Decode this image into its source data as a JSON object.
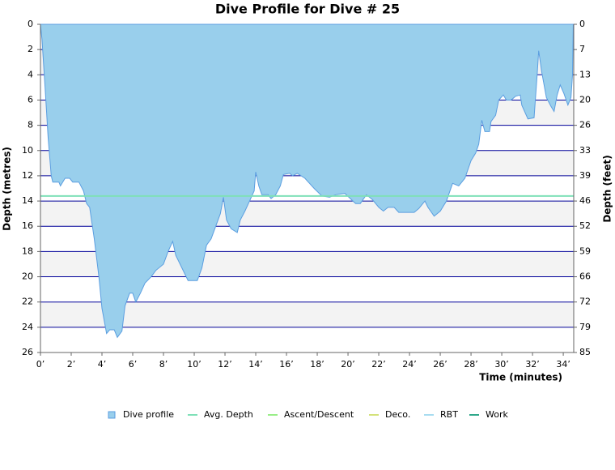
{
  "chart_data": {
    "type": "area",
    "title": "Dive Profile for Dive # 25",
    "x_label": "Time (minutes)",
    "y_label": "Depth (metres)",
    "y2_label": "Depth (feet)",
    "y_inverted": true,
    "xlim": [
      0,
      34.68
    ],
    "ylim": [
      0,
      26
    ],
    "y2lim": [
      0,
      85.302
    ],
    "xticks": [
      {
        "value": 0,
        "label": "0’"
      },
      {
        "value": 2,
        "label": "2’"
      },
      {
        "value": 4,
        "label": "4’"
      },
      {
        "value": 6,
        "label": "6’"
      },
      {
        "value": 8,
        "label": "8’"
      },
      {
        "value": 10,
        "label": "10’"
      },
      {
        "value": 12,
        "label": "12’"
      },
      {
        "value": 14,
        "label": "14’"
      },
      {
        "value": 16,
        "label": "16’"
      },
      {
        "value": 18,
        "label": "18’"
      },
      {
        "value": 20,
        "label": "20’"
      },
      {
        "value": 22,
        "label": "22’"
      },
      {
        "value": 24,
        "label": "24’"
      },
      {
        "value": 26,
        "label": "26’"
      },
      {
        "value": 28,
        "label": "28’"
      },
      {
        "value": 30,
        "label": "30’"
      },
      {
        "value": 32,
        "label": "32’"
      },
      {
        "value": 34,
        "label": "34’"
      }
    ],
    "yticks": [
      0,
      2,
      4,
      6,
      8,
      10,
      12,
      14,
      16,
      18,
      20,
      22,
      24,
      26
    ],
    "y2ticks": [
      0,
      {
        "value": 6.562,
        "label": "7"
      },
      {
        "value": 13.123,
        "label": "13"
      },
      {
        "value": 19.685,
        "label": "20"
      },
      {
        "value": 26.247,
        "label": "26"
      },
      {
        "value": 32.808,
        "label": "33"
      },
      {
        "value": 39.37,
        "label": "39"
      },
      {
        "value": 45.932,
        "label": "46"
      },
      {
        "value": 52.493,
        "label": "52"
      },
      {
        "value": 59.055,
        "label": "59"
      },
      {
        "value": 65.617,
        "label": "66"
      },
      {
        "value": 72.178,
        "label": "72"
      },
      {
        "value": 78.74,
        "label": "79"
      },
      {
        "value": 85.302,
        "label": "85"
      }
    ],
    "grid": true,
    "series": [
      {
        "name": "Dive profile",
        "color": "#99cfec",
        "x": [
          0,
          0.1,
          0.3,
          0.5,
          0.7,
          0.8,
          1.2,
          1.3,
          1.6,
          1.9,
          2.1,
          2.5,
          2.8,
          3.0,
          3.2,
          3.5,
          3.8,
          4.0,
          4.3,
          4.5,
          4.8,
          5.0,
          5.3,
          5.5,
          5.8,
          6.0,
          6.2,
          6.5,
          6.8,
          7.2,
          7.5,
          8.0,
          8.3,
          8.6,
          8.8,
          9.2,
          9.6,
          10.2,
          10.5,
          10.8,
          11.1,
          11.4,
          11.7,
          11.9,
          12.1,
          12.4,
          12.8,
          13.0,
          13.3,
          13.6,
          13.9,
          14.0,
          14.2,
          14.4,
          14.8,
          15.0,
          15.3,
          15.6,
          15.8,
          16.2,
          16.4,
          16.7,
          17.2,
          17.8,
          18.3,
          18.8,
          19.2,
          19.8,
          20.5,
          20.8,
          21.2,
          21.6,
          22.0,
          22.3,
          22.6,
          23.0,
          23.3,
          24.3,
          24.6,
          25.0,
          25.2,
          25.6,
          26.0,
          26.4,
          26.6,
          26.8,
          27.2,
          27.6,
          28.0,
          28.3,
          28.5,
          28.7,
          28.9,
          29.2,
          29.3,
          29.6,
          29.8,
          30.1,
          30.3,
          30.6,
          30.9,
          31.2,
          31.3,
          31.7,
          32.1,
          32.3,
          32.4,
          32.6,
          32.9,
          33.2,
          33.4,
          33.6,
          33.8,
          34.05,
          34.3,
          34.5,
          34.6,
          34.65
        ],
        "values": [
          0,
          1.2,
          5,
          9,
          12,
          12.5,
          12.5,
          12.8,
          12.2,
          12.2,
          12.5,
          12.5,
          13.2,
          14.2,
          14.5,
          17,
          20,
          22.5,
          24.5,
          24.2,
          24.2,
          24.8,
          24.3,
          22.3,
          21.3,
          21.3,
          22,
          21.3,
          20.5,
          20,
          19.5,
          19,
          18,
          17.2,
          18.3,
          19.3,
          20.3,
          20.3,
          19.3,
          17.5,
          17,
          16,
          15,
          13.7,
          15.5,
          16.2,
          16.5,
          15.5,
          14.8,
          14,
          13.2,
          11.7,
          12.8,
          13.5,
          13.5,
          13.8,
          13.5,
          12.8,
          11.9,
          11.8,
          12,
          11.8,
          12.2,
          13,
          13.6,
          13.7,
          13.5,
          13.4,
          14.2,
          14.2,
          13.5,
          13.9,
          14.5,
          14.8,
          14.5,
          14.5,
          14.9,
          14.9,
          14.6,
          14,
          14.5,
          15.2,
          14.8,
          14,
          13.3,
          12.6,
          12.8,
          12.2,
          10.8,
          10.2,
          9.5,
          7.6,
          8.5,
          8.5,
          7.7,
          7.2,
          6,
          5.6,
          6,
          6,
          5.7,
          5.6,
          6.4,
          7.5,
          7.4,
          4,
          2.1,
          3.8,
          5.8,
          6.5,
          6.9,
          5.6,
          4.8,
          5.5,
          6.4,
          5.8,
          4,
          0
        ]
      }
    ],
    "avg_depth": {
      "name": "Avg. Depth",
      "color": "#7fe0b8",
      "value": 13.6
    },
    "legend_only": [
      {
        "name": "Ascent/Descent",
        "color": "#99ee88"
      },
      {
        "name": "Deco.",
        "color": "#d4e27a"
      },
      {
        "name": "RBT",
        "color": "#a8dcf0"
      },
      {
        "name": "Work",
        "color": "#2fa88a"
      }
    ]
  }
}
